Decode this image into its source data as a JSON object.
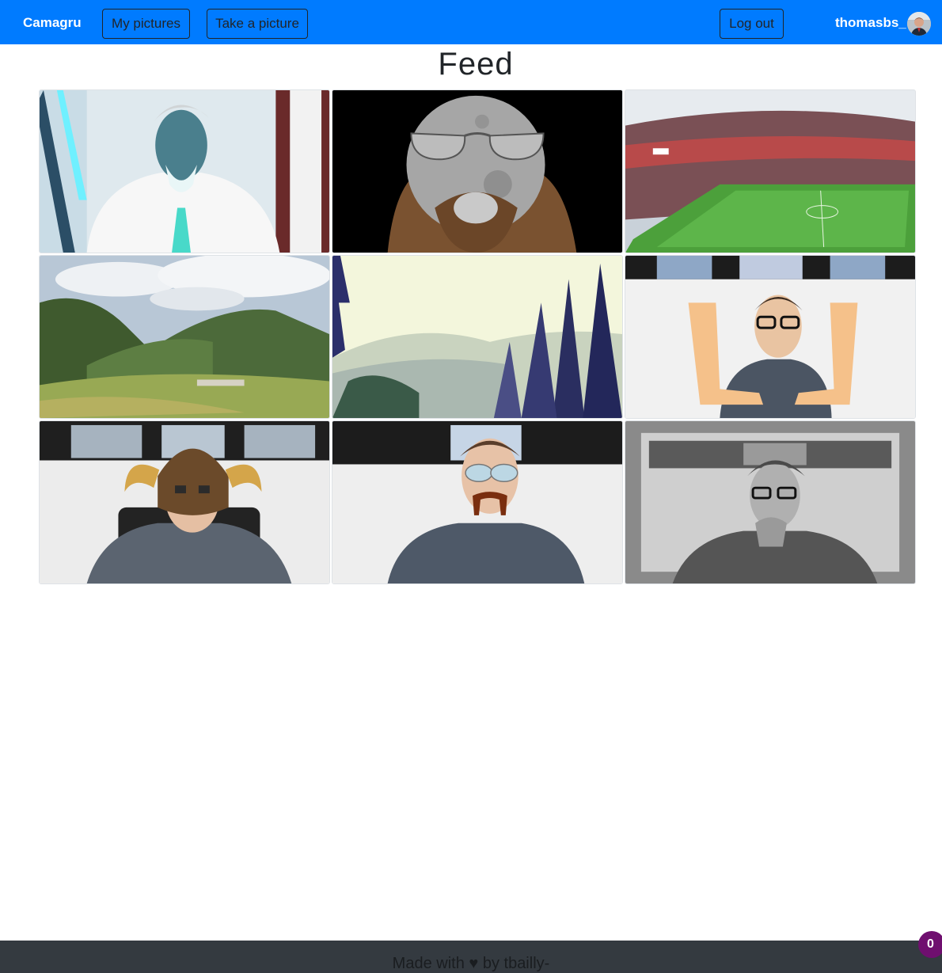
{
  "navbar": {
    "brand": "Camagru",
    "my_pictures": "My pictures",
    "take_picture": "Take a picture",
    "logout": "Log out",
    "username": "thomasbs_",
    "color": "#007bff"
  },
  "page": {
    "title": "Feed"
  },
  "feed": {
    "items": [
      {
        "image": "inverted-portrait-with-beard-sticker"
      },
      {
        "image": "moon-with-sunglasses-and-beard"
      },
      {
        "image": "football-stadium"
      },
      {
        "image": "mountain-valley-landscape"
      },
      {
        "image": "misty-pine-forest"
      },
      {
        "image": "man-with-glasses-hand-frame"
      },
      {
        "image": "man-with-viking-helmet"
      },
      {
        "image": "man-with-sunglasses-and-mustache"
      },
      {
        "image": "grayscale-man-thinking"
      }
    ]
  },
  "footer": {
    "prefix": "Made with",
    "heart_icon": "heart-icon",
    "suffix": "by tbailly-",
    "background": "#343a40"
  },
  "badge": {
    "count": "0",
    "color": "#6f0f6f"
  }
}
